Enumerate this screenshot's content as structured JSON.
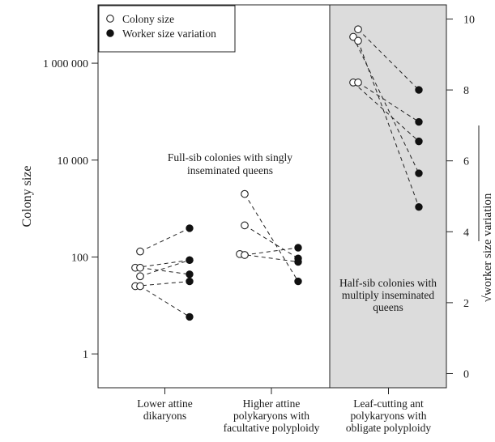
{
  "chart_data": {
    "type": "scatter",
    "ylabel": "Colony size",
    "ylabel_right": "√worker size variation",
    "y_left_scale": "log10",
    "y_left_range": [
      0.2,
      16000000
    ],
    "y_left_ticks": [
      1,
      100,
      10000,
      1000000
    ],
    "y_left_tick_labels": [
      "1",
      "100",
      "10 000",
      "1 000 000"
    ],
    "y_right_range": [
      -0.4,
      10.4
    ],
    "y_right_ticks": [
      0,
      2,
      4,
      6,
      8,
      10
    ],
    "y_right_tick_labels": [
      "0",
      "2",
      "4",
      "6",
      "8",
      "10"
    ],
    "categories": [
      "Lower attine dikaryons",
      "Higher attine polykaryons with facultative polyploidy",
      "Leaf-cutting ant polykaryons with obligate polyploidy"
    ],
    "category_label_lines": [
      [
        "Lower attine",
        "dikaryons"
      ],
      [
        "Higher attine",
        "polykaryons with",
        "facultative polyploidy"
      ],
      [
        "Leaf-cutting ant",
        "polykaryons with",
        "obligate polyploidy"
      ]
    ],
    "legend": {
      "position": "top-left",
      "entries": [
        {
          "label": "Colony size",
          "marker": "open-circle"
        },
        {
          "label": "Worker size variation",
          "marker": "filled-circle"
        }
      ]
    },
    "annotations": {
      "full_sib": [
        "Full-sib colonies with singly",
        "inseminated queens"
      ],
      "half_sib": [
        "Half-sib colonies with",
        "multiply inseminated",
        "queens"
      ]
    },
    "shaded_group": 2,
    "shade_color": "#dcdcdc",
    "series": [
      {
        "name": "Colony size",
        "group": 0,
        "colony_size": [
          130,
          60,
          60,
          40,
          25,
          25
        ],
        "colony_x_offset": [
          0,
          -1,
          0,
          0,
          -1,
          0
        ],
        "worker_size_variation": [
          4.1,
          3.2,
          2.8,
          3.2,
          2.6,
          1.6
        ]
      },
      {
        "name": "Worker size variation",
        "group": 1,
        "colony_size": [
          2000,
          450,
          115,
          110
        ],
        "colony_x_offset": [
          0,
          0,
          -1,
          0
        ],
        "worker_size_variation": [
          2.6,
          3.25,
          3.15,
          3.55
        ]
      },
      {
        "group": 2,
        "colony_size": [
          5000000,
          3500000,
          2900000,
          400000,
          400000
        ],
        "colony_x_offset": [
          0,
          -1,
          0,
          -1,
          0
        ],
        "worker_size_variation": [
          8.0,
          5.65,
          4.7,
          6.55,
          7.1
        ]
      }
    ]
  }
}
